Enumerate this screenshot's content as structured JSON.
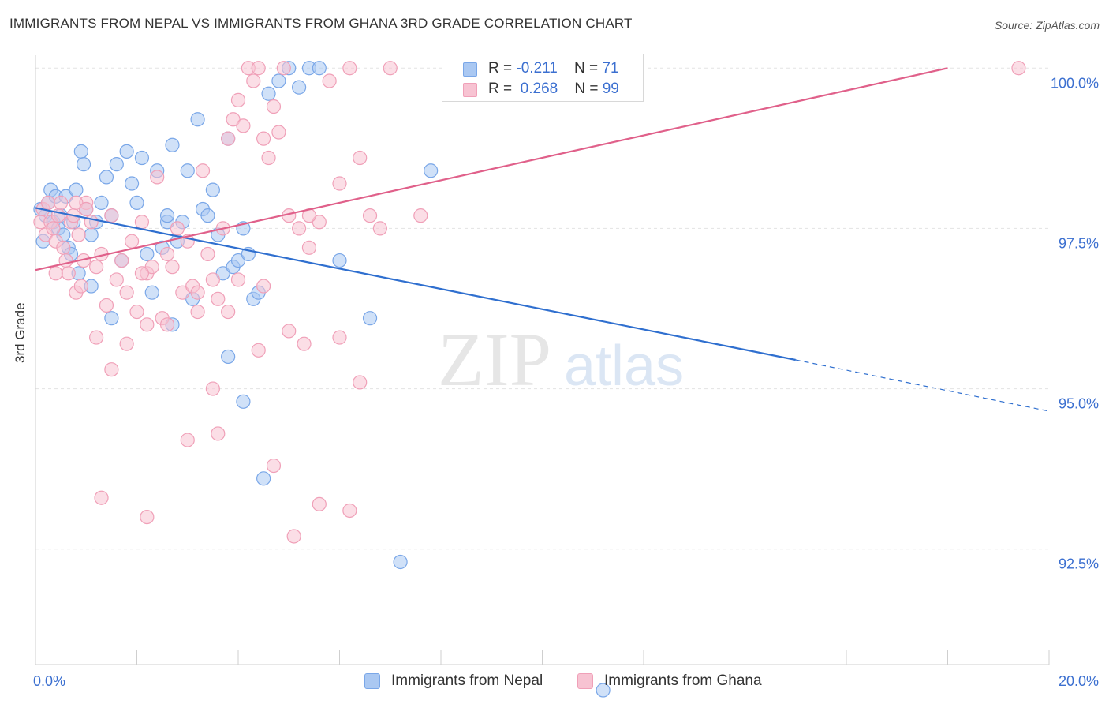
{
  "chart_data": {
    "type": "scatter",
    "title": "IMMIGRANTS FROM NEPAL VS IMMIGRANTS FROM GHANA 3RD GRADE CORRELATION CHART",
    "source": "Source: ZipAtlas.com",
    "xlabel": "",
    "ylabel": "3rd Grade",
    "xlim": [
      0,
      20
    ],
    "ylim": [
      90.7,
      100.2
    ],
    "x_tick_labels": [
      "0.0%",
      "20.0%"
    ],
    "y_ticks": [
      92.5,
      95.0,
      97.5,
      100.0
    ],
    "y_tick_labels": [
      "92.5%",
      "95.0%",
      "97.5%",
      "100.0%"
    ],
    "grid": true,
    "watermark": {
      "part1": "ZIP",
      "part2": "atlas"
    },
    "legend": {
      "r_label": "R =",
      "n_label": "N =",
      "entries": [
        {
          "r": "-0.211",
          "n": "71"
        },
        {
          "r": "0.268",
          "n": "99"
        }
      ]
    },
    "series": [
      {
        "name": "Immigrants from Nepal",
        "color": "#7aa7e8",
        "fill": "#aac8f2",
        "line_color": "#2f6fcf",
        "trend": {
          "x0": 0,
          "y0": 97.82,
          "x1": 15.0,
          "y1": 95.45,
          "dash_to_x": 20,
          "dash_to_y": 94.65
        },
        "points": [
          [
            0.1,
            97.8
          ],
          [
            0.15,
            97.3
          ],
          [
            0.2,
            97.7
          ],
          [
            0.25,
            97.9
          ],
          [
            0.3,
            98.1
          ],
          [
            0.35,
            97.6
          ],
          [
            0.4,
            98.0
          ],
          [
            0.45,
            97.5
          ],
          [
            0.5,
            97.7
          ],
          [
            0.55,
            97.4
          ],
          [
            0.6,
            98.0
          ],
          [
            0.65,
            97.2
          ],
          [
            0.7,
            97.1
          ],
          [
            0.75,
            97.6
          ],
          [
            0.8,
            98.1
          ],
          [
            0.85,
            96.8
          ],
          [
            0.9,
            98.7
          ],
          [
            0.95,
            98.5
          ],
          [
            1.0,
            97.8
          ],
          [
            1.1,
            97.4
          ],
          [
            1.2,
            97.6
          ],
          [
            1.3,
            97.9
          ],
          [
            1.4,
            98.3
          ],
          [
            1.5,
            97.7
          ],
          [
            1.6,
            98.5
          ],
          [
            1.7,
            97.0
          ],
          [
            1.8,
            98.7
          ],
          [
            1.9,
            98.2
          ],
          [
            2.0,
            97.9
          ],
          [
            2.1,
            98.6
          ],
          [
            2.2,
            97.1
          ],
          [
            2.3,
            96.5
          ],
          [
            2.4,
            98.4
          ],
          [
            2.5,
            97.2
          ],
          [
            2.6,
            97.6
          ],
          [
            2.7,
            98.8
          ],
          [
            2.8,
            97.3
          ],
          [
            2.9,
            97.6
          ],
          [
            3.0,
            98.4
          ],
          [
            3.1,
            96.4
          ],
          [
            3.2,
            99.2
          ],
          [
            3.3,
            97.8
          ],
          [
            3.4,
            97.7
          ],
          [
            3.5,
            98.1
          ],
          [
            3.6,
            97.4
          ],
          [
            3.7,
            96.8
          ],
          [
            3.8,
            98.9
          ],
          [
            3.9,
            96.9
          ],
          [
            4.0,
            97.0
          ],
          [
            4.1,
            97.5
          ],
          [
            4.2,
            97.1
          ],
          [
            4.3,
            96.4
          ],
          [
            4.4,
            96.5
          ],
          [
            4.6,
            99.6
          ],
          [
            4.8,
            99.8
          ],
          [
            5.0,
            100.0
          ],
          [
            5.2,
            99.7
          ],
          [
            5.4,
            100.0
          ],
          [
            5.6,
            100.0
          ],
          [
            6.0,
            97.0
          ],
          [
            6.6,
            96.1
          ],
          [
            7.8,
            98.4
          ],
          [
            2.6,
            97.7
          ],
          [
            1.1,
            96.6
          ],
          [
            1.5,
            96.1
          ],
          [
            2.7,
            96.0
          ],
          [
            3.8,
            95.5
          ],
          [
            4.1,
            94.8
          ],
          [
            4.5,
            93.6
          ],
          [
            7.2,
            92.3
          ],
          [
            11.2,
            90.3
          ]
        ]
      },
      {
        "name": "Immigrants from Ghana",
        "color": "#f0a0b8",
        "fill": "#f7c3d2",
        "line_color": "#e0608a",
        "trend": {
          "x0": 0,
          "y0": 96.85,
          "x1": 18.0,
          "y1": 100.0
        },
        "points": [
          [
            0.1,
            97.6
          ],
          [
            0.15,
            97.8
          ],
          [
            0.2,
            97.4
          ],
          [
            0.25,
            97.9
          ],
          [
            0.3,
            97.6
          ],
          [
            0.35,
            97.5
          ],
          [
            0.4,
            97.3
          ],
          [
            0.45,
            97.7
          ],
          [
            0.5,
            97.9
          ],
          [
            0.55,
            97.2
          ],
          [
            0.6,
            97.0
          ],
          [
            0.65,
            96.8
          ],
          [
            0.7,
            97.6
          ],
          [
            0.75,
            97.7
          ],
          [
            0.8,
            96.5
          ],
          [
            0.85,
            97.4
          ],
          [
            0.9,
            96.6
          ],
          [
            0.95,
            97.0
          ],
          [
            1.0,
            97.9
          ],
          [
            1.1,
            97.6
          ],
          [
            1.2,
            96.9
          ],
          [
            1.3,
            97.1
          ],
          [
            1.4,
            96.3
          ],
          [
            1.5,
            97.7
          ],
          [
            1.6,
            96.7
          ],
          [
            1.7,
            97.0
          ],
          [
            1.8,
            96.5
          ],
          [
            1.9,
            97.3
          ],
          [
            2.0,
            96.2
          ],
          [
            2.1,
            97.6
          ],
          [
            2.2,
            96.8
          ],
          [
            2.3,
            96.9
          ],
          [
            2.4,
            98.3
          ],
          [
            2.5,
            96.1
          ],
          [
            2.6,
            97.1
          ],
          [
            2.7,
            96.9
          ],
          [
            2.8,
            97.5
          ],
          [
            2.9,
            96.5
          ],
          [
            3.0,
            97.3
          ],
          [
            3.1,
            96.6
          ],
          [
            3.2,
            96.2
          ],
          [
            3.3,
            98.4
          ],
          [
            3.4,
            97.1
          ],
          [
            3.5,
            96.7
          ],
          [
            3.6,
            96.4
          ],
          [
            3.7,
            97.5
          ],
          [
            3.8,
            98.9
          ],
          [
            3.9,
            99.2
          ],
          [
            4.0,
            99.5
          ],
          [
            4.1,
            99.1
          ],
          [
            4.2,
            100.0
          ],
          [
            4.3,
            99.8
          ],
          [
            4.4,
            100.0
          ],
          [
            4.5,
            98.9
          ],
          [
            4.6,
            98.6
          ],
          [
            4.7,
            99.4
          ],
          [
            4.8,
            99.0
          ],
          [
            4.9,
            100.0
          ],
          [
            5.0,
            97.7
          ],
          [
            5.2,
            97.5
          ],
          [
            5.4,
            97.2
          ],
          [
            5.6,
            97.6
          ],
          [
            5.8,
            99.8
          ],
          [
            6.0,
            98.2
          ],
          [
            6.2,
            100.0
          ],
          [
            6.4,
            98.6
          ],
          [
            6.6,
            97.7
          ],
          [
            6.8,
            97.5
          ],
          [
            7.0,
            100.0
          ],
          [
            19.4,
            100.0
          ],
          [
            0.4,
            96.8
          ],
          [
            1.2,
            95.8
          ],
          [
            1.5,
            95.3
          ],
          [
            1.8,
            95.7
          ],
          [
            2.2,
            96.0
          ],
          [
            2.6,
            96.0
          ],
          [
            3.0,
            94.2
          ],
          [
            3.5,
            95.0
          ],
          [
            3.8,
            96.2
          ],
          [
            4.4,
            95.6
          ],
          [
            5.0,
            95.9
          ],
          [
            5.3,
            95.7
          ],
          [
            1.3,
            93.3
          ],
          [
            2.2,
            93.0
          ],
          [
            3.6,
            94.3
          ],
          [
            4.7,
            93.8
          ],
          [
            5.1,
            92.7
          ],
          [
            5.6,
            93.2
          ],
          [
            6.2,
            93.1
          ],
          [
            0.8,
            97.9
          ],
          [
            1.0,
            97.8
          ],
          [
            2.1,
            96.8
          ],
          [
            3.2,
            96.5
          ],
          [
            4.0,
            96.7
          ],
          [
            4.5,
            96.6
          ],
          [
            5.4,
            97.7
          ],
          [
            6.0,
            95.8
          ],
          [
            6.4,
            95.1
          ],
          [
            7.6,
            97.7
          ]
        ]
      }
    ]
  }
}
